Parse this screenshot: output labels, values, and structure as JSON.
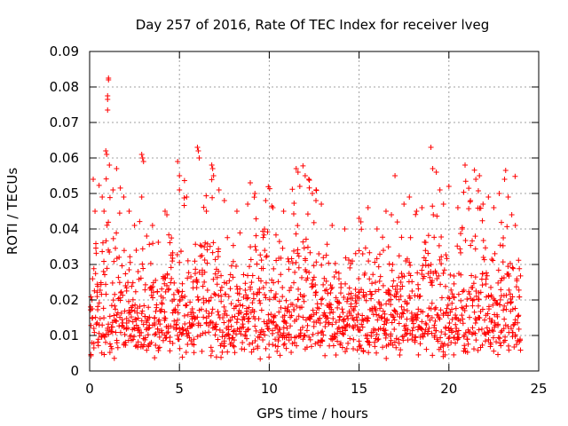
{
  "chart_data": {
    "type": "scatter",
    "title": "Day 257 of 2016, Rate Of TEC Index for receiver lveg",
    "xlabel": "GPS time / hours",
    "ylabel": "ROTI / TECUs",
    "xlim": [
      0,
      25
    ],
    "ylim": [
      0,
      0.09
    ],
    "x_ticks": [
      0,
      5,
      10,
      15,
      20,
      25
    ],
    "x_tick_labels": [
      "0",
      "5",
      "10",
      "15",
      "20",
      "25"
    ],
    "y_ticks": [
      0,
      0.01,
      0.02,
      0.03,
      0.04,
      0.05,
      0.06,
      0.07,
      0.08,
      0.09
    ],
    "y_tick_labels": [
      "0",
      "0.01",
      "0.02",
      "0.03",
      "0.04",
      "0.05",
      "0.06",
      "0.07",
      "0.08",
      "0.09"
    ],
    "grid": true,
    "marker": "+",
    "series": [
      {
        "name": "ROTI",
        "color": "#ff0000",
        "points": [
          [
            1.0,
            0.0735
          ],
          [
            1.0,
            0.0775
          ],
          [
            1.05,
            0.0825
          ],
          [
            1.05,
            0.082
          ],
          [
            1.0,
            0.0765
          ],
          [
            0.9,
            0.062
          ],
          [
            0.95,
            0.061
          ],
          [
            1.1,
            0.058
          ],
          [
            1.5,
            0.057
          ],
          [
            1.3,
            0.051
          ],
          [
            0.2,
            0.054
          ],
          [
            0.3,
            0.045
          ],
          [
            0.7,
            0.049
          ],
          [
            0.8,
            0.045
          ],
          [
            1.9,
            0.049
          ],
          [
            2.2,
            0.045
          ],
          [
            2.5,
            0.041
          ],
          [
            2.9,
            0.061
          ],
          [
            2.95,
            0.06
          ],
          [
            3.0,
            0.059
          ],
          [
            2.9,
            0.049
          ],
          [
            3.5,
            0.041
          ],
          [
            4.2,
            0.045
          ],
          [
            4.3,
            0.044
          ],
          [
            4.9,
            0.059
          ],
          [
            5.0,
            0.055
          ],
          [
            5.0,
            0.051
          ],
          [
            5.4,
            0.049
          ],
          [
            6.0,
            0.063
          ],
          [
            6.05,
            0.062
          ],
          [
            6.1,
            0.06
          ],
          [
            6.5,
            0.045
          ],
          [
            6.8,
            0.058
          ],
          [
            6.85,
            0.057
          ],
          [
            6.9,
            0.055
          ],
          [
            7.2,
            0.051
          ],
          [
            7.5,
            0.048
          ],
          [
            8.2,
            0.045
          ],
          [
            8.8,
            0.047
          ],
          [
            9.2,
            0.05
          ],
          [
            9.8,
            0.048
          ],
          [
            10.2,
            0.046
          ],
          [
            10.8,
            0.045
          ],
          [
            11.5,
            0.057
          ],
          [
            11.6,
            0.056
          ],
          [
            11.7,
            0.052
          ],
          [
            12.0,
            0.055
          ],
          [
            12.2,
            0.054
          ],
          [
            12.4,
            0.05
          ],
          [
            12.6,
            0.048
          ],
          [
            12.9,
            0.047
          ],
          [
            13.5,
            0.041
          ],
          [
            14.2,
            0.04
          ],
          [
            15.0,
            0.043
          ],
          [
            15.1,
            0.042
          ],
          [
            15.5,
            0.046
          ],
          [
            16.0,
            0.04
          ],
          [
            16.5,
            0.045
          ],
          [
            16.8,
            0.044
          ],
          [
            17.0,
            0.055
          ],
          [
            17.5,
            0.047
          ],
          [
            17.8,
            0.049
          ],
          [
            18.2,
            0.045
          ],
          [
            18.5,
            0.046
          ],
          [
            19.0,
            0.063
          ],
          [
            19.1,
            0.057
          ],
          [
            19.3,
            0.056
          ],
          [
            19.5,
            0.051
          ],
          [
            19.7,
            0.047
          ],
          [
            20.0,
            0.052
          ],
          [
            20.5,
            0.046
          ],
          [
            20.9,
            0.058
          ],
          [
            21.2,
            0.048
          ],
          [
            21.5,
            0.054
          ],
          [
            21.7,
            0.055
          ],
          [
            21.9,
            0.047
          ],
          [
            22.2,
            0.049
          ],
          [
            22.5,
            0.046
          ],
          [
            22.8,
            0.05
          ],
          [
            23.1,
            0.054
          ],
          [
            23.3,
            0.049
          ],
          [
            23.5,
            0.044
          ],
          [
            23.7,
            0.041
          ]
        ],
        "dense_bands": [
          {
            "x_start": 0.0,
            "x_end": 24.0,
            "step": 0.045,
            "base_low": 0.005,
            "base_high": 0.016,
            "spread": 0.017,
            "spike_rate": 0.06,
            "spike_high": 0.04
          },
          {
            "x_start": 0.0,
            "x_end": 24.0,
            "step": 0.08,
            "base_low": 0.003,
            "base_high": 0.012,
            "spread": 0.028,
            "spike_rate": 0.03,
            "spike_high": 0.045
          }
        ],
        "active_windows": [
          [
            0.5,
            1.8,
            1.6
          ],
          [
            2.6,
            3.2,
            1.3
          ],
          [
            4.2,
            5.3,
            1.4
          ],
          [
            5.8,
            7.0,
            1.5
          ],
          [
            8.8,
            10.2,
            1.5
          ],
          [
            11.2,
            12.8,
            1.7
          ],
          [
            14.8,
            15.6,
            1.2
          ],
          [
            16.8,
            17.6,
            1.2
          ],
          [
            18.6,
            19.8,
            1.5
          ],
          [
            20.6,
            22.0,
            1.6
          ],
          [
            22.8,
            23.8,
            1.5
          ]
        ]
      }
    ]
  }
}
